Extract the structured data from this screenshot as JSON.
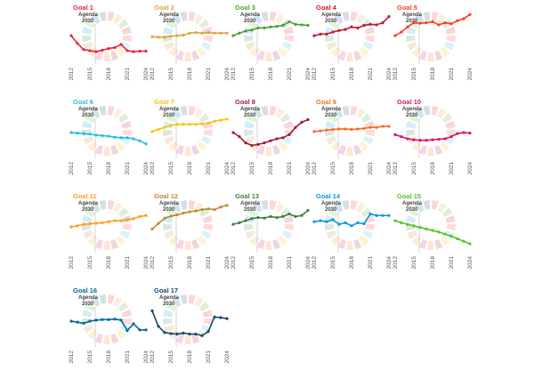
{
  "agenda_label_line1": "Agenda",
  "agenda_label_line2": "2030",
  "wheel_colors": [
    "#e5243b",
    "#dda63a",
    "#4c9f38",
    "#c5192d",
    "#ff3a21",
    "#26bde2",
    "#fcc30b",
    "#a21942",
    "#fd6925",
    "#dd1367",
    "#fd9d24",
    "#bf8b2e",
    "#3f7e44",
    "#0a97d9",
    "#56c02b",
    "#00689d",
    "#19486a"
  ],
  "chart_data": [
    {
      "type": "line",
      "title": "Goal 1",
      "color": "#e5243b",
      "x": [
        2012,
        2013,
        2014,
        2015,
        2016,
        2017,
        2018,
        2019,
        2020,
        2021,
        2022,
        2023,
        2024
      ],
      "y": [
        0.55,
        0.4,
        0.28,
        0.26,
        0.24,
        0.27,
        0.3,
        0.32,
        0.38,
        0.26,
        0.24,
        0.25,
        0.25
      ],
      "xticks": [
        2012,
        2015,
        2018,
        2021,
        2024
      ],
      "ylim": [
        0,
        1
      ]
    },
    {
      "type": "line",
      "title": "Goal 2",
      "color": "#dda63a",
      "x": [
        2012,
        2013,
        2014,
        2015,
        2016,
        2017,
        2018,
        2019,
        2020,
        2021,
        2022,
        2023,
        2024
      ],
      "y": [
        0.53,
        0.52,
        0.52,
        0.54,
        0.55,
        0.56,
        0.6,
        0.61,
        0.6,
        0.61,
        0.6,
        0.6,
        0.6
      ],
      "xticks": [
        2012,
        2015,
        2018,
        2021,
        2024
      ],
      "ylim": [
        0,
        1
      ]
    },
    {
      "type": "line",
      "title": "Goal 3",
      "color": "#4c9f38",
      "x": [
        2012,
        2013,
        2014,
        2015,
        2016,
        2017,
        2018,
        2019,
        2020,
        2021,
        2022,
        2023,
        2024
      ],
      "y": [
        0.55,
        0.6,
        0.64,
        0.66,
        0.7,
        0.7,
        0.72,
        0.73,
        0.75,
        0.82,
        0.77,
        0.76,
        0.75
      ],
      "xticks": [
        2012,
        2015,
        2018,
        2021,
        2024
      ],
      "ylim": [
        0,
        1
      ]
    },
    {
      "type": "line",
      "title": "Goal 4",
      "color": "#c5192d",
      "x": [
        2012,
        2013,
        2014,
        2015,
        2016,
        2017,
        2018,
        2019,
        2020,
        2021,
        2022,
        2023,
        2024
      ],
      "y": [
        0.55,
        0.58,
        0.58,
        0.62,
        0.65,
        0.67,
        0.72,
        0.7,
        0.75,
        0.77,
        0.76,
        0.8,
        0.92
      ],
      "xticks": [
        2012,
        2015,
        2018,
        2021,
        2024
      ],
      "ylim": [
        0,
        1
      ]
    },
    {
      "type": "line",
      "title": "Goal 5",
      "color": "#ff3a21",
      "x": [
        2012,
        2013,
        2014,
        2015,
        2016,
        2017,
        2018,
        2019,
        2020,
        2021,
        2022,
        2023,
        2024
      ],
      "y": [
        0.55,
        0.62,
        0.72,
        0.8,
        0.79,
        0.8,
        0.82,
        0.76,
        0.8,
        0.78,
        0.84,
        0.88,
        0.96
      ],
      "xticks": [
        2012,
        2015,
        2018,
        2021,
        2024
      ],
      "ylim": [
        0,
        1
      ]
    },
    {
      "type": "line",
      "title": "Goal 6",
      "color": "#26bde2",
      "x": [
        2012,
        2013,
        2014,
        2015,
        2016,
        2017,
        2018,
        2019,
        2020,
        2021,
        2022,
        2023,
        2024
      ],
      "y": [
        0.5,
        0.49,
        0.48,
        0.47,
        0.45,
        0.44,
        0.43,
        0.41,
        0.4,
        0.4,
        0.38,
        0.34,
        0.28
      ],
      "xticks": [
        2012,
        2015,
        2018,
        2021,
        2024
      ],
      "ylim": [
        0,
        1
      ]
    },
    {
      "type": "line",
      "title": "Goal 7",
      "color": "#fcc30b",
      "x": [
        2012,
        2013,
        2014,
        2015,
        2016,
        2017,
        2018,
        2019,
        2020,
        2021,
        2022,
        2023,
        2024
      ],
      "y": [
        0.52,
        0.56,
        0.6,
        0.64,
        0.66,
        0.66,
        0.66,
        0.66,
        0.67,
        0.68,
        0.72,
        0.74,
        0.76
      ],
      "xticks": [
        2012,
        2015,
        2018,
        2021,
        2024
      ],
      "ylim": [
        0,
        1
      ]
    },
    {
      "type": "line",
      "title": "Goal 8",
      "color": "#a21942",
      "x": [
        2012,
        2013,
        2014,
        2015,
        2016,
        2017,
        2018,
        2019,
        2020,
        2021,
        2022,
        2023,
        2024
      ],
      "y": [
        0.5,
        0.42,
        0.3,
        0.25,
        0.27,
        0.3,
        0.34,
        0.38,
        0.4,
        0.46,
        0.6,
        0.7,
        0.75
      ],
      "xticks": [
        2012,
        2015,
        2018,
        2021,
        2024
      ],
      "ylim": [
        0,
        1
      ]
    },
    {
      "type": "line",
      "title": "Goal 9",
      "color": "#fd6925",
      "x": [
        2012,
        2013,
        2014,
        2015,
        2016,
        2017,
        2018,
        2019,
        2020,
        2021,
        2022,
        2023,
        2024
      ],
      "y": [
        0.52,
        0.53,
        0.55,
        0.56,
        0.57,
        0.57,
        0.56,
        0.57,
        0.58,
        0.6,
        0.6,
        0.62,
        0.62
      ],
      "xticks": [
        2012,
        2015,
        2018,
        2021,
        2024
      ],
      "ylim": [
        0,
        1
      ]
    },
    {
      "type": "line",
      "title": "Goal 10",
      "color": "#dd1367",
      "x": [
        2012,
        2013,
        2014,
        2015,
        2016,
        2017,
        2018,
        2019,
        2020,
        2021,
        2022,
        2023,
        2024
      ],
      "y": [
        0.46,
        0.42,
        0.38,
        0.36,
        0.35,
        0.35,
        0.36,
        0.37,
        0.38,
        0.42,
        0.48,
        0.5,
        0.49
      ],
      "xticks": [
        2012,
        2015,
        2018,
        2021,
        2024
      ],
      "ylim": [
        0,
        1
      ]
    },
    {
      "type": "line",
      "title": "Goal 11",
      "color": "#fd9d24",
      "x": [
        2012,
        2013,
        2014,
        2015,
        2016,
        2017,
        2018,
        2019,
        2020,
        2021,
        2022,
        2023,
        2024
      ],
      "y": [
        0.5,
        0.52,
        0.55,
        0.56,
        0.57,
        0.58,
        0.6,
        0.62,
        0.62,
        0.64,
        0.66,
        0.7,
        0.72
      ],
      "xticks": [
        2012,
        2015,
        2018,
        2021,
        2024
      ],
      "ylim": [
        0,
        1
      ]
    },
    {
      "type": "line",
      "title": "Goal 12",
      "color": "#bf8b2e",
      "x": [
        2012,
        2013,
        2014,
        2015,
        2016,
        2017,
        2018,
        2019,
        2020,
        2021,
        2022,
        2023,
        2024
      ],
      "y": [
        0.55,
        0.68,
        0.8,
        0.85,
        0.88,
        0.92,
        0.95,
        0.97,
        1.0,
        1.02,
        1.0,
        1.06,
        1.1
      ],
      "xticks": [
        2012,
        2015,
        2018,
        2021,
        2024
      ],
      "ylim": [
        0,
        1.2
      ]
    },
    {
      "type": "line",
      "title": "Goal 13",
      "color": "#3f7e44",
      "x": [
        2012,
        2013,
        2014,
        2015,
        2016,
        2017,
        2018,
        2019,
        2020,
        2021,
        2022,
        2023,
        2024
      ],
      "y": [
        0.55,
        0.58,
        0.62,
        0.66,
        0.68,
        0.67,
        0.7,
        0.68,
        0.7,
        0.75,
        0.7,
        0.72,
        0.82
      ],
      "xticks": [
        2012,
        2015,
        2018,
        2021,
        2024
      ],
      "ylim": [
        0,
        1
      ]
    },
    {
      "type": "line",
      "title": "Goal 14",
      "color": "#0a97d9",
      "x": [
        2012,
        2013,
        2014,
        2015,
        2016,
        2017,
        2018,
        2019,
        2020,
        2021,
        2022,
        2023,
        2024
      ],
      "y": [
        0.6,
        0.62,
        0.6,
        0.64,
        0.55,
        0.58,
        0.52,
        0.58,
        0.56,
        0.75,
        0.72,
        0.72,
        0.72
      ],
      "xticks": [
        2012,
        2015,
        2018,
        2021,
        2024
      ],
      "ylim": [
        0,
        1
      ]
    },
    {
      "type": "line",
      "title": "Goal 15",
      "color": "#56c02b",
      "x": [
        2012,
        2013,
        2014,
        2015,
        2016,
        2017,
        2018,
        2019,
        2020,
        2021,
        2022,
        2023,
        2024
      ],
      "y": [
        0.62,
        0.58,
        0.55,
        0.52,
        0.49,
        0.46,
        0.43,
        0.4,
        0.36,
        0.32,
        0.27,
        0.22,
        0.17
      ],
      "xticks": [
        2012,
        2015,
        2018,
        2021,
        2024
      ],
      "ylim": [
        0,
        1
      ]
    },
    {
      "type": "line",
      "title": "Goal 16",
      "color": "#00689d",
      "x": [
        2012,
        2013,
        2014,
        2015,
        2016,
        2017,
        2018,
        2019,
        2020,
        2021,
        2022,
        2023,
        2024
      ],
      "y": [
        0.5,
        0.48,
        0.46,
        0.5,
        0.52,
        0.53,
        0.53,
        0.54,
        0.52,
        0.32,
        0.45,
        0.33,
        0.33
      ],
      "xticks": [
        2012,
        2015,
        2018,
        2021,
        2024
      ],
      "ylim": [
        0,
        1
      ]
    },
    {
      "type": "line",
      "title": "Goal 17",
      "color": "#19486a",
      "x": [
        2012,
        2013,
        2014,
        2015,
        2016,
        2017,
        2018,
        2019,
        2020,
        2021,
        2022,
        2023,
        2024
      ],
      "y": [
        0.7,
        0.4,
        0.28,
        0.26,
        0.25,
        0.27,
        0.25,
        0.25,
        0.22,
        0.3,
        0.58,
        0.57,
        0.55
      ],
      "xticks": [
        2012,
        2015,
        2018,
        2021,
        2024
      ],
      "ylim": [
        0,
        1
      ]
    }
  ]
}
